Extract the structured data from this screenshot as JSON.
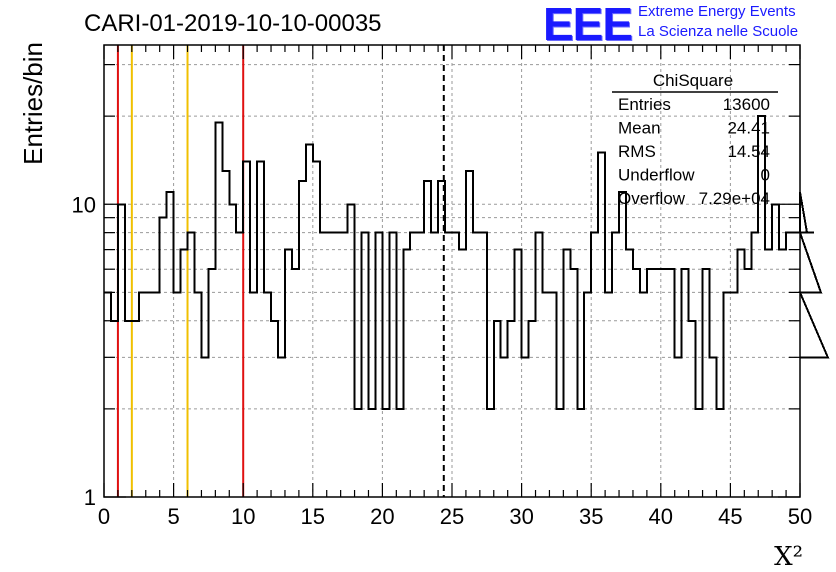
{
  "header": {
    "title": "CARI-01-2019-10-10-00035",
    "logo": "EEE",
    "logo_line1": "Extreme Energy Events",
    "logo_line2": "La Scienza nelle Scuole"
  },
  "colors": {
    "red": "#e01010",
    "orange": "#f0c000",
    "logo": "#1a1aff",
    "grid": "#9a9a9a"
  },
  "chart_data": {
    "type": "histogram",
    "title": "CARI-01-2019-10-10-00035",
    "xlabel": "X²",
    "ylabel": "Entries/bin",
    "xlim": [
      0,
      50
    ],
    "ylim": [
      1,
      35
    ],
    "yscale": "log",
    "xticks": [
      0,
      5,
      10,
      15,
      20,
      25,
      30,
      35,
      40,
      45,
      50
    ],
    "yticks": [
      1,
      10
    ],
    "bin_width": 0.5,
    "values": [
      5,
      4,
      10,
      4,
      4,
      5,
      5,
      5,
      9,
      11,
      5,
      7,
      8,
      5,
      3,
      6,
      19,
      13,
      10,
      8,
      14,
      5,
      14,
      5,
      4,
      3,
      7,
      6,
      12,
      16,
      14,
      8,
      8,
      8,
      8,
      10,
      2,
      8,
      2,
      8,
      2,
      8,
      2,
      7,
      8,
      8,
      12,
      8,
      12,
      8,
      8,
      7,
      13,
      8,
      8,
      2,
      4,
      3,
      4,
      7,
      3,
      4,
      8,
      5,
      5,
      2,
      7,
      6,
      2,
      5,
      8,
      15,
      5,
      8,
      11,
      7,
      6,
      5,
      6,
      6,
      6,
      6,
      3,
      6,
      4,
      2,
      6,
      3,
      2,
      5,
      5,
      7,
      6,
      8,
      20,
      7,
      10,
      7,
      8,
      8,
      11,
      8,
      8,
      5,
      3
    ],
    "vlines": [
      {
        "x": 1.0,
        "color": "red",
        "style": "solid"
      },
      {
        "x": 2.0,
        "color": "orange",
        "style": "solid"
      },
      {
        "x": 6.0,
        "color": "orange",
        "style": "solid"
      },
      {
        "x": 10.0,
        "color": "red",
        "style": "solid"
      },
      {
        "x": 24.41,
        "color": "black",
        "style": "dashed"
      }
    ],
    "stats": {
      "name": "ChiSquare",
      "rows": [
        {
          "label": "Entries",
          "value": "13600"
        },
        {
          "label": "Mean",
          "value": "24.41"
        },
        {
          "label": "RMS",
          "value": "14.54"
        },
        {
          "label": "Underflow",
          "value": "0"
        },
        {
          "label": "Overflow",
          "value": "7.29e+04"
        }
      ]
    }
  }
}
